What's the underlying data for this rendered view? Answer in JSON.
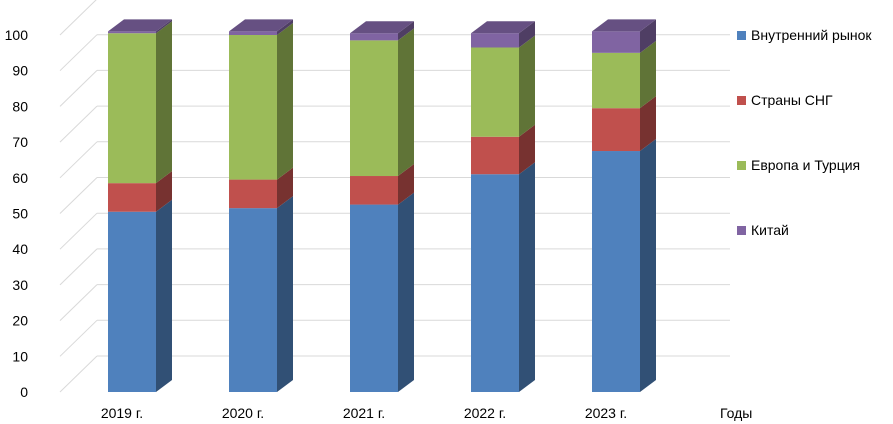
{
  "chart_data": {
    "type": "bar",
    "stacked": true,
    "three_d": true,
    "categories": [
      "2019 г.",
      "2020 г.",
      "2021 г.",
      "2022 г.",
      "2023 г."
    ],
    "xlabel": "Годы",
    "ylabel": "",
    "ylim": [
      0,
      100
    ],
    "yticks": [
      "0",
      "10",
      "20",
      "30",
      "40",
      "50",
      "60",
      "70",
      "80",
      "90",
      "100"
    ],
    "grid": true,
    "legend_position": "right",
    "series": [
      {
        "name": "Внутренний рынок",
        "color": "#4f81bd",
        "values": [
          50.5,
          51.5,
          52.5,
          61,
          67.5
        ]
      },
      {
        "name": "Страны СНГ",
        "color": "#c0504d",
        "values": [
          8,
          8,
          8,
          10.5,
          12
        ]
      },
      {
        "name": "Европа и Турция",
        "color": "#9bbb59",
        "values": [
          42,
          40.5,
          38,
          25,
          15.5
        ]
      },
      {
        "name": "Китай",
        "color": "#8064a2",
        "values": [
          0.5,
          1,
          2,
          4,
          6
        ]
      }
    ]
  }
}
